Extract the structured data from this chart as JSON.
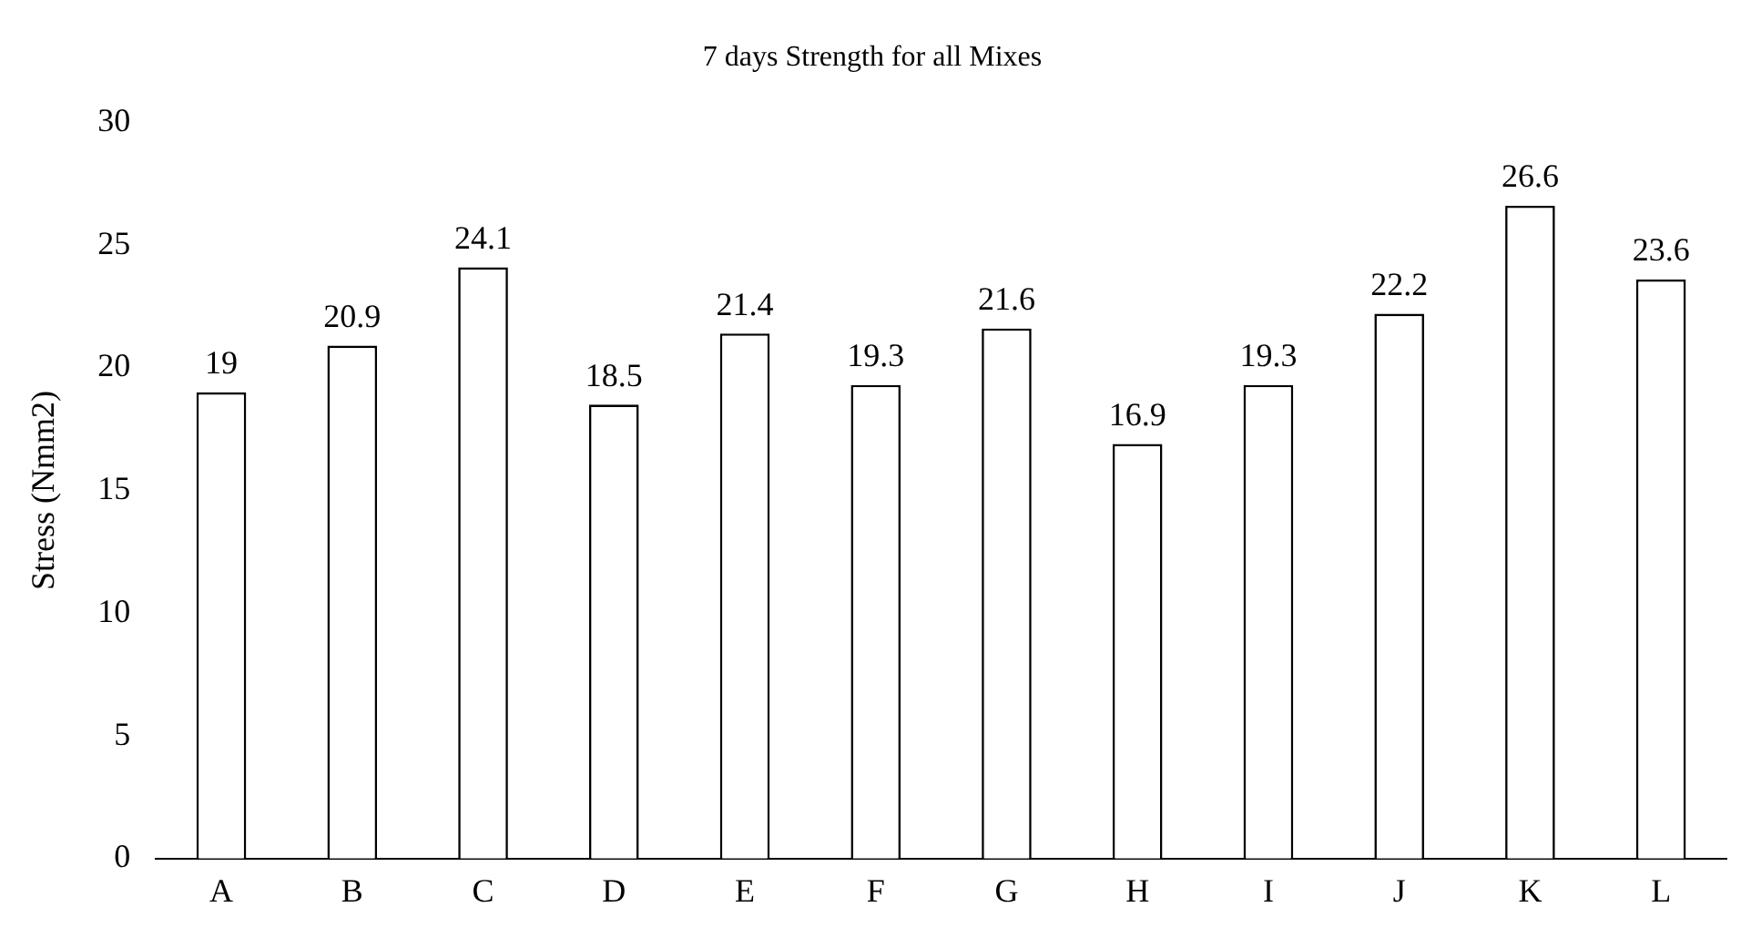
{
  "chart_data": {
    "type": "bar",
    "title": "7 days Strength for all Mixes",
    "ylabel": "Stress (Nmm2)",
    "categories": [
      "A",
      "B",
      "C",
      "D",
      "E",
      "F",
      "G",
      "H",
      "I",
      "J",
      "K",
      "L"
    ],
    "values": [
      19,
      20.9,
      24.1,
      18.5,
      21.4,
      19.3,
      21.6,
      16.9,
      19.3,
      22.2,
      26.6,
      23.6
    ],
    "color": "#ffffff",
    "ylim": [
      0,
      30
    ],
    "yticks": [
      0,
      5,
      10,
      15,
      20,
      25,
      30
    ],
    "grid": false,
    "legend": false,
    "data_labels": true
  }
}
